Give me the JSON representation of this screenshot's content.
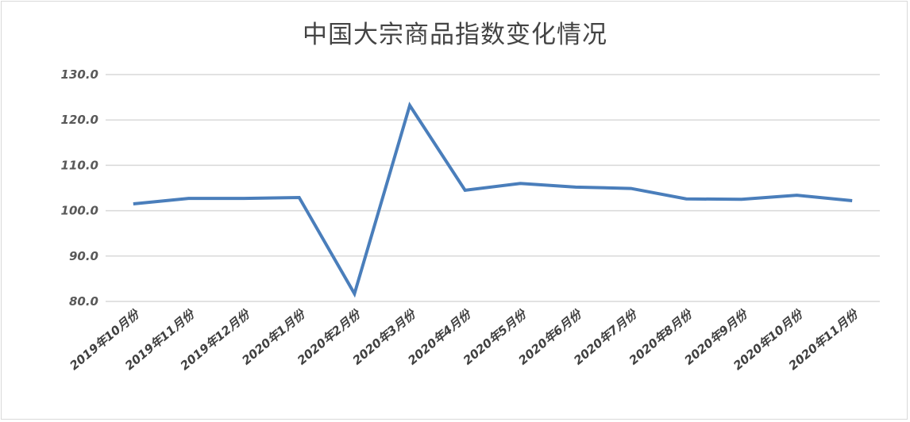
{
  "chart_data": {
    "type": "line",
    "title": "中国大宗商品指数变化情况",
    "categories": [
      "2019年10月份",
      "2019年11月份",
      "2019年12月份",
      "2020年1月份",
      "2020年2月份",
      "2020年3月份",
      "2020年4月份",
      "2020年5月份",
      "2020年6月份",
      "2020年7月份",
      "2020年8月份",
      "2020年9月份",
      "2020年10月份",
      "2020年11月份"
    ],
    "values": [
      101.5,
      102.7,
      102.7,
      102.9,
      81.7,
      123.2,
      104.5,
      106.0,
      105.2,
      104.9,
      102.6,
      102.5,
      103.4,
      102.2
    ],
    "yticks": [
      "80.0",
      "90.0",
      "100.0",
      "110.0",
      "120.0",
      "130.0"
    ],
    "ylim": [
      80,
      130
    ],
    "grid": true,
    "legend": "none",
    "line_color": "#4a7ebb",
    "xlabel": "",
    "ylabel": ""
  }
}
